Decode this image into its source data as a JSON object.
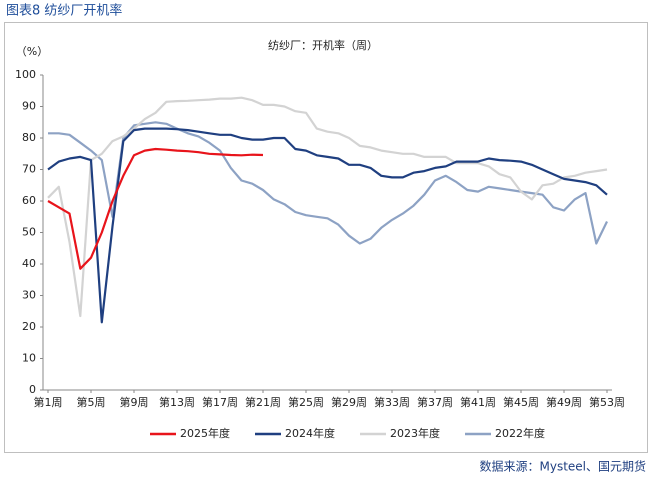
{
  "header": "图表8 纺纱厂开机率",
  "source": "数据来源：Mysteel、国元期货",
  "chart_data": {
    "type": "line",
    "title": "纺纱厂：开机率（周）",
    "y_label": "（%）",
    "categories": [
      "第1周",
      null,
      null,
      null,
      "第5周",
      null,
      null,
      null,
      "第9周",
      null,
      null,
      null,
      "第13周",
      null,
      null,
      null,
      "第17周",
      null,
      null,
      null,
      "第21周",
      null,
      null,
      null,
      "第25周",
      null,
      null,
      null,
      "第29周",
      null,
      null,
      null,
      "第33周",
      null,
      null,
      null,
      "第37周",
      null,
      null,
      null,
      "第41周",
      null,
      null,
      null,
      "第45周",
      null,
      null,
      null,
      "第49周",
      null,
      null,
      null,
      "第53周"
    ],
    "ylim": [
      0,
      100
    ],
    "yticks": [
      0,
      10,
      20,
      30,
      40,
      50,
      60,
      70,
      80,
      90,
      100
    ],
    "grid": false,
    "legend": "bottom",
    "series": [
      {
        "name": "2025年度",
        "color": "#e8141b",
        "values": [
          60,
          58,
          56,
          38.5,
          42,
          50,
          60,
          68,
          74.5,
          76,
          76.5,
          76.3,
          76,
          75.8,
          75.5,
          75,
          74.8,
          74.6,
          74.5,
          74.7,
          74.6,
          null,
          null,
          null,
          null,
          null,
          null,
          null,
          null,
          null,
          null,
          null,
          null,
          null,
          null,
          null,
          null,
          null,
          null,
          null,
          null,
          null,
          null,
          null,
          null,
          null,
          null,
          null,
          null,
          null,
          null,
          null,
          null
        ]
      },
      {
        "name": "2024年度",
        "color": "#1f3f80",
        "values": [
          70,
          72.5,
          73.5,
          74,
          73,
          21.5,
          52,
          79,
          82.5,
          83,
          83,
          83,
          82.8,
          82.5,
          82,
          81.5,
          81,
          81,
          80,
          79.5,
          79.5,
          80,
          80,
          76.5,
          76,
          74.5,
          74,
          73.5,
          71.5,
          71.5,
          70.5,
          68,
          67.5,
          67.5,
          69,
          69.5,
          70.5,
          71,
          72.5,
          72.5,
          72.5,
          73.5,
          73,
          72.8,
          72.5,
          71.5,
          70,
          68.5,
          67,
          66.5,
          66,
          65,
          62
        ]
      },
      {
        "name": "2023年度",
        "color": "#d3d3d3",
        "values": [
          61,
          64.5,
          47,
          23.5,
          73,
          75,
          79,
          80.5,
          83,
          86,
          88,
          91.5,
          91.7,
          91.8,
          92,
          92.2,
          92.5,
          92.5,
          92.8,
          92,
          90.5,
          90.5,
          90,
          88.5,
          88,
          83,
          82,
          81.5,
          80,
          77.5,
          77,
          76,
          75.5,
          75,
          75,
          74,
          74,
          74,
          72,
          72,
          72,
          71,
          68.5,
          67.5,
          63,
          60.5,
          65,
          65.5,
          67.5,
          68,
          69,
          69.5,
          70
        ]
      },
      {
        "name": "2022年度",
        "color": "#8da2c4",
        "values": [
          81.5,
          81.5,
          81,
          78.5,
          76,
          73,
          55,
          80,
          84,
          84.5,
          85,
          84.5,
          83,
          81.5,
          80.5,
          78.5,
          76,
          70.5,
          66.5,
          65.5,
          63.5,
          60.5,
          59,
          56.5,
          55.5,
          55,
          54.5,
          52.5,
          49,
          46.5,
          48,
          51.5,
          54,
          56,
          58.5,
          62,
          66.5,
          68,
          66,
          63.5,
          63,
          64.5,
          64,
          63.5,
          63,
          62.5,
          62,
          58,
          57,
          60.5,
          62.5,
          46.5,
          53.5
        ]
      }
    ]
  }
}
